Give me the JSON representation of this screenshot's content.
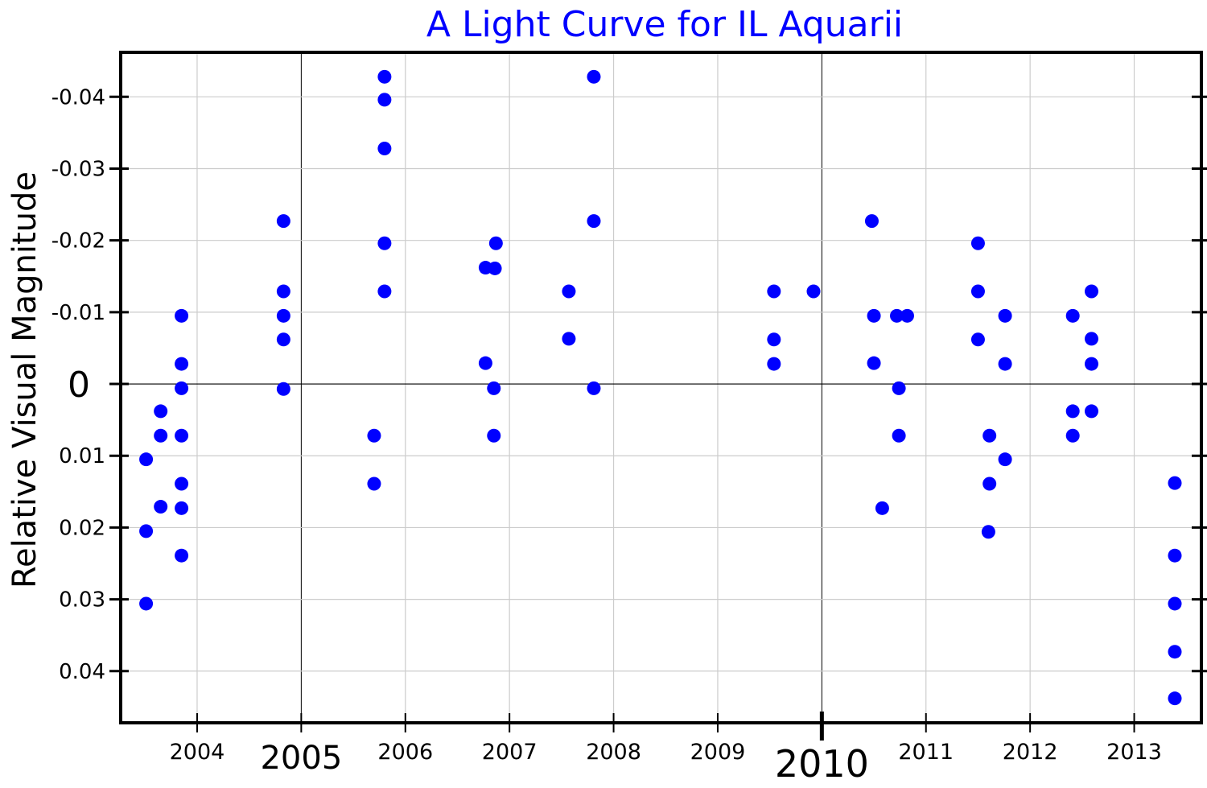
{
  "chart_data": {
    "type": "scatter",
    "title": "A Light Curve for IL Aquarii",
    "xlabel": "",
    "ylabel": "Relative Visual Magnitude",
    "xlim": [
      2003.266,
      2013.645
    ],
    "ylim": [
      -0.0462,
      0.0472
    ],
    "y_inverted": true,
    "grid": true,
    "colors": {
      "points": "#0000ff",
      "title": "#0000ff",
      "grid": "#cccccc",
      "axis": "#000000"
    },
    "x_ticks": [
      {
        "value": 2004,
        "label": "2004",
        "major": false
      },
      {
        "value": 2005,
        "label": "2005",
        "major": true
      },
      {
        "value": 2006,
        "label": "2006",
        "major": false
      },
      {
        "value": 2007,
        "label": "2007",
        "major": false
      },
      {
        "value": 2008,
        "label": "2008",
        "major": false
      },
      {
        "value": 2009,
        "label": "2009",
        "major": false
      },
      {
        "value": 2010,
        "label": "2010",
        "major": true
      },
      {
        "value": 2011,
        "label": "2011",
        "major": false
      },
      {
        "value": 2012,
        "label": "2012",
        "major": false
      },
      {
        "value": 2013,
        "label": "2013",
        "major": false
      }
    ],
    "y_ticks": [
      {
        "value": -0.04,
        "label": "-0.04"
      },
      {
        "value": -0.03,
        "label": "-0.03"
      },
      {
        "value": -0.02,
        "label": "-0.02"
      },
      {
        "value": -0.01,
        "label": "-0.01"
      },
      {
        "value": 0,
        "label": "0",
        "major": true
      },
      {
        "value": 0.01,
        "label": "0.01"
      },
      {
        "value": 0.02,
        "label": "0.02"
      },
      {
        "value": 0.03,
        "label": "0.03"
      },
      {
        "value": 0.04,
        "label": "0.04"
      }
    ],
    "series": [
      {
        "name": "IL Aquarii",
        "points": [
          [
            2003.51,
            0.0105
          ],
          [
            2003.51,
            0.0205
          ],
          [
            2003.51,
            0.0306
          ],
          [
            2003.65,
            0.0038
          ],
          [
            2003.65,
            0.0072
          ],
          [
            2003.65,
            0.0171
          ],
          [
            2003.85,
            -0.0095
          ],
          [
            2003.85,
            -0.0028
          ],
          [
            2003.85,
            0.0006
          ],
          [
            2003.85,
            0.0072
          ],
          [
            2003.85,
            0.0139
          ],
          [
            2003.85,
            0.0173
          ],
          [
            2003.85,
            0.0239
          ],
          [
            2004.83,
            -0.0227
          ],
          [
            2004.83,
            -0.0129
          ],
          [
            2004.83,
            -0.0095
          ],
          [
            2004.83,
            -0.0062
          ],
          [
            2004.83,
            0.0007
          ],
          [
            2005.7,
            0.0072
          ],
          [
            2005.7,
            0.0139
          ],
          [
            2005.8,
            -0.0428
          ],
          [
            2005.8,
            -0.0396
          ],
          [
            2005.8,
            -0.0328
          ],
          [
            2005.8,
            -0.0196
          ],
          [
            2005.8,
            -0.0129
          ],
          [
            2006.77,
            -0.0162
          ],
          [
            2006.86,
            -0.0161
          ],
          [
            2006.87,
            -0.0196
          ],
          [
            2006.77,
            -0.0029
          ],
          [
            2006.85,
            0.0006
          ],
          [
            2006.85,
            0.0072
          ],
          [
            2007.57,
            -0.0129
          ],
          [
            2007.57,
            -0.0063
          ],
          [
            2007.81,
            -0.0428
          ],
          [
            2007.81,
            -0.0227
          ],
          [
            2007.81,
            0.0006
          ],
          [
            2009.54,
            -0.0129
          ],
          [
            2009.54,
            -0.0062
          ],
          [
            2009.54,
            -0.0028
          ],
          [
            2009.92,
            -0.0129
          ],
          [
            2010.48,
            -0.0227
          ],
          [
            2010.5,
            -0.0095
          ],
          [
            2010.5,
            -0.0029
          ],
          [
            2010.58,
            0.0173
          ],
          [
            2010.72,
            -0.0095
          ],
          [
            2010.82,
            -0.0095
          ],
          [
            2010.74,
            0.0006
          ],
          [
            2010.74,
            0.0072
          ],
          [
            2011.5,
            -0.0196
          ],
          [
            2011.5,
            -0.0129
          ],
          [
            2011.5,
            -0.0062
          ],
          [
            2011.61,
            0.0072
          ],
          [
            2011.61,
            0.0139
          ],
          [
            2011.6,
            0.0206
          ],
          [
            2011.76,
            -0.0095
          ],
          [
            2011.76,
            -0.0028
          ],
          [
            2011.76,
            0.0105
          ],
          [
            2012.41,
            -0.0095
          ],
          [
            2012.41,
            0.0038
          ],
          [
            2012.41,
            0.0072
          ],
          [
            2012.59,
            -0.0129
          ],
          [
            2012.59,
            -0.0063
          ],
          [
            2012.59,
            -0.0028
          ],
          [
            2012.59,
            0.0038
          ],
          [
            2013.39,
            0.0138
          ],
          [
            2013.39,
            0.0239
          ],
          [
            2013.39,
            0.0306
          ],
          [
            2013.39,
            0.0373
          ],
          [
            2013.39,
            0.0438
          ]
        ]
      }
    ]
  }
}
